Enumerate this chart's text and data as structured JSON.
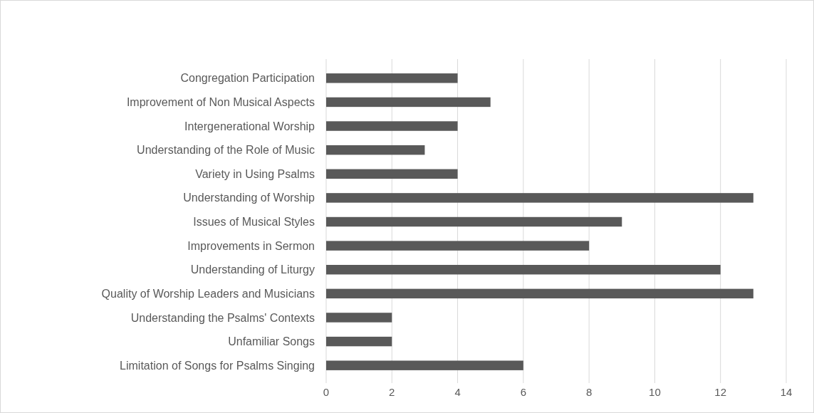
{
  "chart_data": {
    "type": "bar",
    "orientation": "horizontal",
    "categories": [
      "Congregation Participation",
      "Improvement of Non Musical Aspects",
      "Intergenerational Worship",
      "Understanding of the Role of Music",
      "Variety in Using Psalms",
      "Understanding of Worship",
      "Issues of Musical Styles",
      "Improvements in Sermon",
      "Understanding of Liturgy",
      "Quality of Worship Leaders and Musicians",
      "Understanding the Psalms' Contexts",
      "Unfamiliar Songs",
      "Limitation of Songs for Psalms Singing"
    ],
    "values": [
      4,
      5,
      4,
      3,
      4,
      13,
      9,
      8,
      12,
      13,
      2,
      2,
      6
    ],
    "color": "#595959",
    "xlim": [
      0,
      14
    ],
    "xticks": [
      0,
      2,
      4,
      6,
      8,
      10,
      12,
      14
    ],
    "grid": "x"
  }
}
